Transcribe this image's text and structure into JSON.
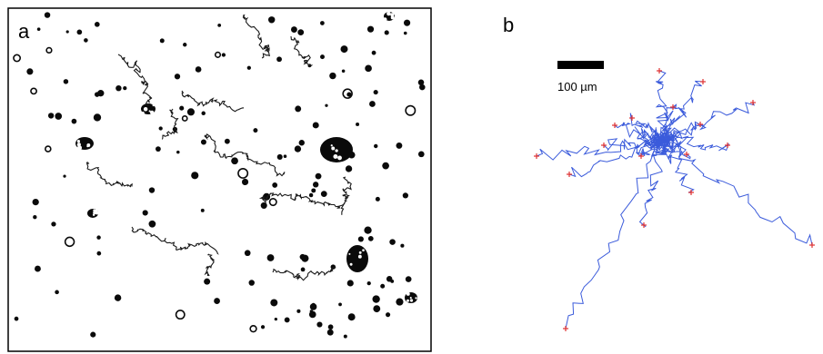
{
  "figure": {
    "panel_a_label": "a",
    "panel_b_label": "b",
    "scale_bar_label": "100 µm"
  },
  "colors": {
    "micrograph_background": "#ffffff",
    "particle": "#0a0a0a",
    "track_a": "#1a1a1a",
    "track_b": "#3b5bdb",
    "track_end_marker": "#e03131"
  }
}
